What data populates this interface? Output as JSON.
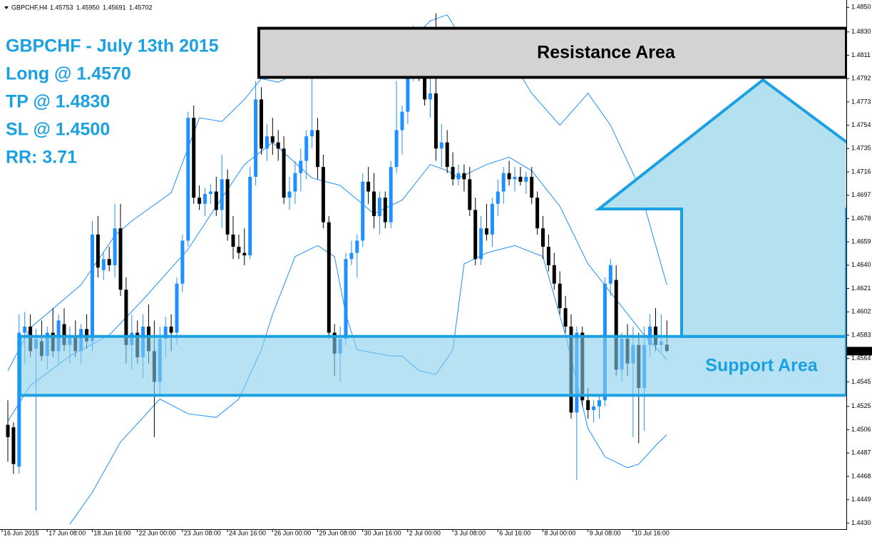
{
  "chart_data": {
    "type": "candlestick",
    "header": {
      "symbol": "GBPCHF,H4",
      "ohlc": [
        "1.45753",
        "1.45950",
        "1.45691",
        "1.45702"
      ]
    },
    "annotations": [
      "GBPCHF - July 13th 2015",
      "Long @ 1.4570",
      "TP @ 1.4830",
      "SL @ 1.4500",
      "RR: 3.71"
    ],
    "up_color": "#1e90ff",
    "down_color": "#000000",
    "ylim": [
      1.4425,
      1.4856
    ],
    "yticks": [
      {
        "value": 1.485,
        "label": "1.4850"
      },
      {
        "value": 1.483,
        "label": "1.4830"
      },
      1.4811,
      1.4792,
      1.4773,
      1.4754,
      1.4735,
      1.4716,
      1.4697,
      1.4678,
      1.4659,
      {
        "value": 1.464,
        "label": "1.4640"
      },
      1.4621,
      1.4602,
      1.4583,
      1.4564,
      1.4545,
      1.4525,
      1.4506,
      1.4487,
      1.4468,
      1.4449,
      {
        "value": 1.443,
        "label": "1.4430"
      }
    ],
    "current_price": {
      "value": 1.457,
      "label": "1.4570"
    },
    "xticks": [
      {
        "value": 0,
        "label": "16 Jun 2015"
      },
      {
        "value": 8,
        "label": "17 Jun 08:00"
      },
      {
        "value": 16,
        "label": "18 Jun 16:00"
      },
      {
        "value": 24,
        "label": "22 Jun 00:00"
      },
      {
        "value": 32,
        "label": "23 Jun 08:00"
      },
      {
        "value": 40,
        "label": "24 Jun 16:00"
      },
      {
        "value": 48,
        "label": "26 Jun 00:00"
      },
      {
        "value": 56,
        "label": "29 Jun 08:00"
      },
      {
        "value": 64,
        "label": "30 Jun 16:00"
      },
      {
        "value": 72,
        "label": "2 Jul 00:00"
      },
      {
        "value": 80,
        "label": "3 Jul 08:00"
      },
      {
        "value": 88,
        "label": "6 Jul 16:00"
      },
      {
        "value": 96,
        "label": "8 Jul 00:00"
      },
      {
        "value": 104,
        "label": "9 Jul 08:00"
      },
      {
        "value": 112,
        "label": "10 Jul 16:00"
      }
    ],
    "ohlc": [
      [
        1.451,
        1.453,
        1.448,
        1.45
      ],
      [
        1.4508,
        1.4512,
        1.447,
        1.4478
      ],
      [
        1.4476,
        1.46,
        1.447,
        1.4585
      ],
      [
        1.4585,
        1.4602,
        1.456,
        1.459
      ],
      [
        1.459,
        1.46,
        1.4565,
        1.457
      ],
      [
        1.4572,
        1.4588,
        1.444,
        1.458
      ],
      [
        1.4578,
        1.4595,
        1.4562,
        1.4566
      ],
      [
        1.4566,
        1.459,
        1.4555,
        1.4585
      ],
      [
        1.4585,
        1.4605,
        1.4565,
        1.457
      ],
      [
        1.457,
        1.46,
        1.456,
        1.4595
      ],
      [
        1.4592,
        1.4605,
        1.457,
        1.4575
      ],
      [
        1.4575,
        1.459,
        1.456,
        1.4582
      ],
      [
        1.4582,
        1.4595,
        1.4565,
        1.457
      ],
      [
        1.457,
        1.4592,
        1.456,
        1.4588
      ],
      [
        1.4588,
        1.46,
        1.4572,
        1.4578
      ],
      [
        1.4578,
        1.4676,
        1.457,
        1.4665
      ],
      [
        1.4665,
        1.468,
        1.463,
        1.4638
      ],
      [
        1.4636,
        1.465,
        1.4628,
        1.4645
      ],
      [
        1.4645,
        1.4655,
        1.4635,
        1.464
      ],
      [
        1.464,
        1.469,
        1.463,
        1.467
      ],
      [
        1.467,
        1.469,
        1.4615,
        1.462
      ],
      [
        1.462,
        1.463,
        1.456,
        1.4575
      ],
      [
        1.4575,
        1.46,
        1.4555,
        1.4585
      ],
      [
        1.4585,
        1.4595,
        1.456,
        1.4565
      ],
      [
        1.4565,
        1.46,
        1.4548,
        1.459
      ],
      [
        1.459,
        1.4608,
        1.456,
        1.457
      ],
      [
        1.457,
        1.4595,
        1.45,
        1.4545
      ],
      [
        1.4545,
        1.459,
        1.4535,
        1.458
      ],
      [
        1.458,
        1.4598,
        1.4565,
        1.459
      ],
      [
        1.459,
        1.46,
        1.457,
        1.4585
      ],
      [
        1.4585,
        1.463,
        1.4575,
        1.4625
      ],
      [
        1.4625,
        1.4665,
        1.4618,
        1.466
      ],
      [
        1.466,
        1.4765,
        1.4655,
        1.476
      ],
      [
        1.476,
        1.477,
        1.469,
        1.4695
      ],
      [
        1.4695,
        1.4705,
        1.4685,
        1.469
      ],
      [
        1.469,
        1.4703,
        1.468,
        1.4698
      ],
      [
        1.4698,
        1.4706,
        1.469,
        1.47
      ],
      [
        1.47,
        1.4712,
        1.468,
        1.4685
      ],
      [
        1.4685,
        1.473,
        1.467,
        1.471
      ],
      [
        1.471,
        1.4718,
        1.466,
        1.4665
      ],
      [
        1.4665,
        1.468,
        1.4645,
        1.4655
      ],
      [
        1.4655,
        1.4665,
        1.4645,
        1.465
      ],
      [
        1.465,
        1.467,
        1.464,
        1.4648
      ],
      [
        1.4648,
        1.472,
        1.4645,
        1.4712
      ],
      [
        1.4712,
        1.479,
        1.4705,
        1.4775
      ],
      [
        1.4775,
        1.4785,
        1.473,
        1.4735
      ],
      [
        1.4735,
        1.4755,
        1.4725,
        1.4745
      ],
      [
        1.4745,
        1.476,
        1.473,
        1.474
      ],
      [
        1.474,
        1.475,
        1.4725,
        1.4735
      ],
      [
        1.4735,
        1.4745,
        1.469,
        1.4695
      ],
      [
        1.4695,
        1.4712,
        1.4685,
        1.47
      ],
      [
        1.47,
        1.4725,
        1.469,
        1.4715
      ],
      [
        1.4715,
        1.4735,
        1.47,
        1.4725
      ],
      [
        1.4725,
        1.475,
        1.471,
        1.4745
      ],
      [
        1.4745,
        1.48,
        1.4735,
        1.475
      ],
      [
        1.475,
        1.476,
        1.471,
        1.472
      ],
      [
        1.472,
        1.473,
        1.467,
        1.4675
      ],
      [
        1.4675,
        1.468,
        1.458,
        1.4585
      ],
      [
        1.4585,
        1.4592,
        1.455,
        1.4568
      ],
      [
        1.4568,
        1.459,
        1.4545,
        1.458
      ],
      [
        1.458,
        1.465,
        1.4575,
        1.4645
      ],
      [
        1.4645,
        1.466,
        1.464,
        1.465
      ],
      [
        1.465,
        1.4665,
        1.463,
        1.466
      ],
      [
        1.466,
        1.4715,
        1.4655,
        1.4708
      ],
      [
        1.4708,
        1.472,
        1.469,
        1.47
      ],
      [
        1.47,
        1.4715,
        1.467,
        1.468
      ],
      [
        1.468,
        1.47,
        1.4665,
        1.4695
      ],
      [
        1.4695,
        1.47,
        1.467,
        1.4675
      ],
      [
        1.4675,
        1.4725,
        1.467,
        1.472
      ],
      [
        1.472,
        1.479,
        1.4715,
        1.475
      ],
      [
        1.475,
        1.477,
        1.473,
        1.4765
      ],
      [
        1.4765,
        1.481,
        1.4755,
        1.48
      ],
      [
        1.48,
        1.4835,
        1.479,
        1.481
      ],
      [
        1.481,
        1.482,
        1.479,
        1.4795
      ],
      [
        1.4795,
        1.483,
        1.477,
        1.4775
      ],
      [
        1.4775,
        1.48,
        1.476,
        1.478
      ],
      [
        1.478,
        1.4845,
        1.4725,
        1.4735
      ],
      [
        1.4735,
        1.4755,
        1.472,
        1.474
      ],
      [
        1.474,
        1.475,
        1.4715,
        1.472
      ],
      [
        1.472,
        1.4732,
        1.4705,
        1.471
      ],
      [
        1.471,
        1.4722,
        1.4705,
        1.4715
      ],
      [
        1.4715,
        1.4722,
        1.47,
        1.471
      ],
      [
        1.471,
        1.472,
        1.468,
        1.4685
      ],
      [
        1.4685,
        1.4695,
        1.464,
        1.4645
      ],
      [
        1.4645,
        1.468,
        1.464,
        1.467
      ],
      [
        1.467,
        1.469,
        1.466,
        1.4665
      ],
      [
        1.4665,
        1.4695,
        1.4655,
        1.469
      ],
      [
        1.469,
        1.471,
        1.468,
        1.47
      ],
      [
        1.47,
        1.472,
        1.469,
        1.4715
      ],
      [
        1.4715,
        1.4725,
        1.4705,
        1.471
      ],
      [
        1.471,
        1.472,
        1.47,
        1.4712
      ],
      [
        1.4712,
        1.472,
        1.4705,
        1.4708
      ],
      [
        1.4708,
        1.4716,
        1.4698,
        1.4712
      ],
      [
        1.4712,
        1.472,
        1.469,
        1.4695
      ],
      [
        1.4695,
        1.47,
        1.4665,
        1.467
      ],
      [
        1.467,
        1.468,
        1.4645,
        1.4655
      ],
      [
        1.4655,
        1.4665,
        1.4635,
        1.464
      ],
      [
        1.464,
        1.465,
        1.462,
        1.4625
      ],
      [
        1.4625,
        1.4635,
        1.46,
        1.4605
      ],
      [
        1.4605,
        1.4615,
        1.4585,
        1.459
      ],
      [
        1.459,
        1.46,
        1.4515,
        1.452
      ],
      [
        1.452,
        1.459,
        1.4465,
        1.4585
      ],
      [
        1.4585,
        1.459,
        1.4525,
        1.453
      ],
      [
        1.453,
        1.454,
        1.4515,
        1.4522
      ],
      [
        1.4522,
        1.453,
        1.4512,
        1.4525
      ],
      [
        1.4525,
        1.4535,
        1.4515,
        1.453
      ],
      [
        1.453,
        1.463,
        1.4525,
        1.4625
      ],
      [
        1.4625,
        1.4645,
        1.4615,
        1.464
      ],
      [
        1.4628,
        1.464,
        1.455,
        1.4555
      ],
      [
        1.4555,
        1.4585,
        1.4545,
        1.458
      ],
      [
        1.458,
        1.4592,
        1.455,
        1.456
      ],
      [
        1.456,
        1.459,
        1.45,
        1.4575
      ],
      [
        1.4575,
        1.4585,
        1.4495,
        1.454
      ],
      [
        1.454,
        1.459,
        1.4505,
        1.4575
      ],
      [
        1.4575,
        1.46,
        1.4565,
        1.459
      ],
      [
        1.459,
        1.4605,
        1.457,
        1.4575
      ],
      [
        1.4575,
        1.46,
        1.457,
        1.4578
      ],
      [
        1.45753,
        1.4595,
        1.45691,
        1.45702
      ]
    ],
    "bands": {
      "color": "#1e90ff",
      "lines": [
        {
          "x": [
            0,
            4,
            13,
            19,
            22,
            29,
            34,
            38,
            42,
            45,
            48,
            52,
            56,
            60,
            65,
            68,
            71,
            75,
            78,
            81,
            85,
            89,
            93,
            98,
            103,
            107,
            112,
            117
          ],
          "values": [
            1.4554,
            1.4589,
            1.4624,
            1.4664,
            1.4676,
            1.4699,
            1.476,
            1.4757,
            1.4775,
            1.4792,
            1.4789,
            1.4798,
            1.4792,
            1.481,
            1.481,
            1.4798,
            1.4821,
            1.4839,
            1.4844,
            1.4821,
            1.4812,
            1.481,
            1.478,
            1.4754,
            1.478,
            1.4754,
            1.4705,
            1.4624
          ]
        },
        {
          "x": [
            0,
            4,
            11,
            18,
            24,
            32,
            37,
            42,
            47,
            54,
            59,
            65,
            70,
            75,
            78,
            80,
            85,
            89,
            93,
            98,
            103,
            108,
            113,
            117
          ],
          "values": [
            1.4513,
            1.4542,
            1.4566,
            1.4583,
            1.4612,
            1.4653,
            1.4688,
            1.4722,
            1.474,
            1.4711,
            1.4705,
            1.4682,
            1.4693,
            1.4722,
            1.4717,
            1.4711,
            1.4722,
            1.4728,
            1.4717,
            1.4688,
            1.4641,
            1.4612,
            1.4583,
            1.4563
          ]
        },
        {
          "x": [
            11,
            15,
            20,
            27,
            32,
            37,
            41,
            45,
            47,
            51,
            55,
            58,
            60,
            62,
            68,
            70,
            73,
            76,
            79,
            81,
            85,
            90,
            95,
            99,
            103,
            106,
            110,
            112,
            115,
            117
          ],
          "values": [
            1.4429,
            1.4455,
            1.4496,
            1.4531,
            1.4519,
            1.4516,
            1.4531,
            1.4571,
            1.46,
            1.4647,
            1.4656,
            1.4647,
            1.46,
            1.4571,
            1.4566,
            1.4566,
            1.4554,
            1.4551,
            1.4571,
            1.4641,
            1.465,
            1.4656,
            1.4647,
            1.4583,
            1.4507,
            1.4484,
            1.4475,
            1.4478,
            1.4493,
            1.4502
          ]
        }
      ]
    },
    "zones": [
      {
        "label": "Resistance Area",
        "range": [
          1.4793,
          1.4833
        ],
        "fill": "#d3d3d3",
        "border": "#000000",
        "text_color": "#000000"
      },
      {
        "label": "Support Area",
        "range": [
          1.4534,
          1.4582
        ],
        "fill": "rgba(135,206,235,0.6)",
        "border": "#1ba1e2",
        "text_color": "#1ba1e2"
      }
    ]
  }
}
